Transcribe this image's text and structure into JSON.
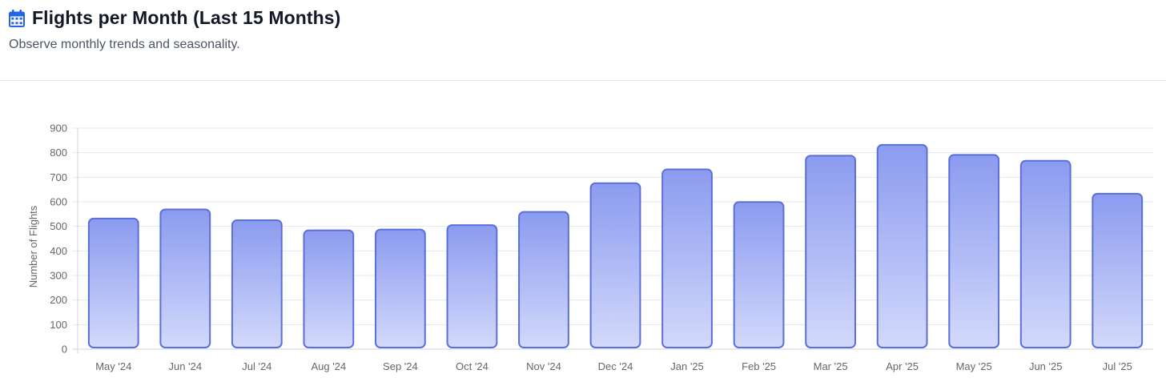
{
  "header": {
    "icon": "calendar-icon",
    "title": "Flights per Month (Last 15 Months)",
    "subtitle": "Observe monthly trends and seasonality."
  },
  "colors": {
    "icon": "#2563eb",
    "bar_border": "#5b6fd8",
    "bar_fill_top": "#8b9bef",
    "bar_fill_bottom": "#d3d9fb"
  },
  "chart_data": {
    "type": "bar",
    "ylabel": "Number of Flights",
    "xlabel": "",
    "ylim": [
      0,
      900
    ],
    "yticks": [
      0,
      100,
      200,
      300,
      400,
      500,
      600,
      700,
      800,
      900
    ],
    "grid": true,
    "categories": [
      "May '24",
      "Jun '24",
      "Jul '24",
      "Aug '24",
      "Sep '24",
      "Oct '24",
      "Nov '24",
      "Dec '24",
      "Jan '25",
      "Feb '25",
      "Mar '25",
      "Apr '25",
      "May '25",
      "Jun '25",
      "Jul '25"
    ],
    "values": [
      532,
      569,
      525,
      484,
      487,
      505,
      559,
      676,
      732,
      599,
      788,
      832,
      791,
      767,
      633
    ]
  }
}
